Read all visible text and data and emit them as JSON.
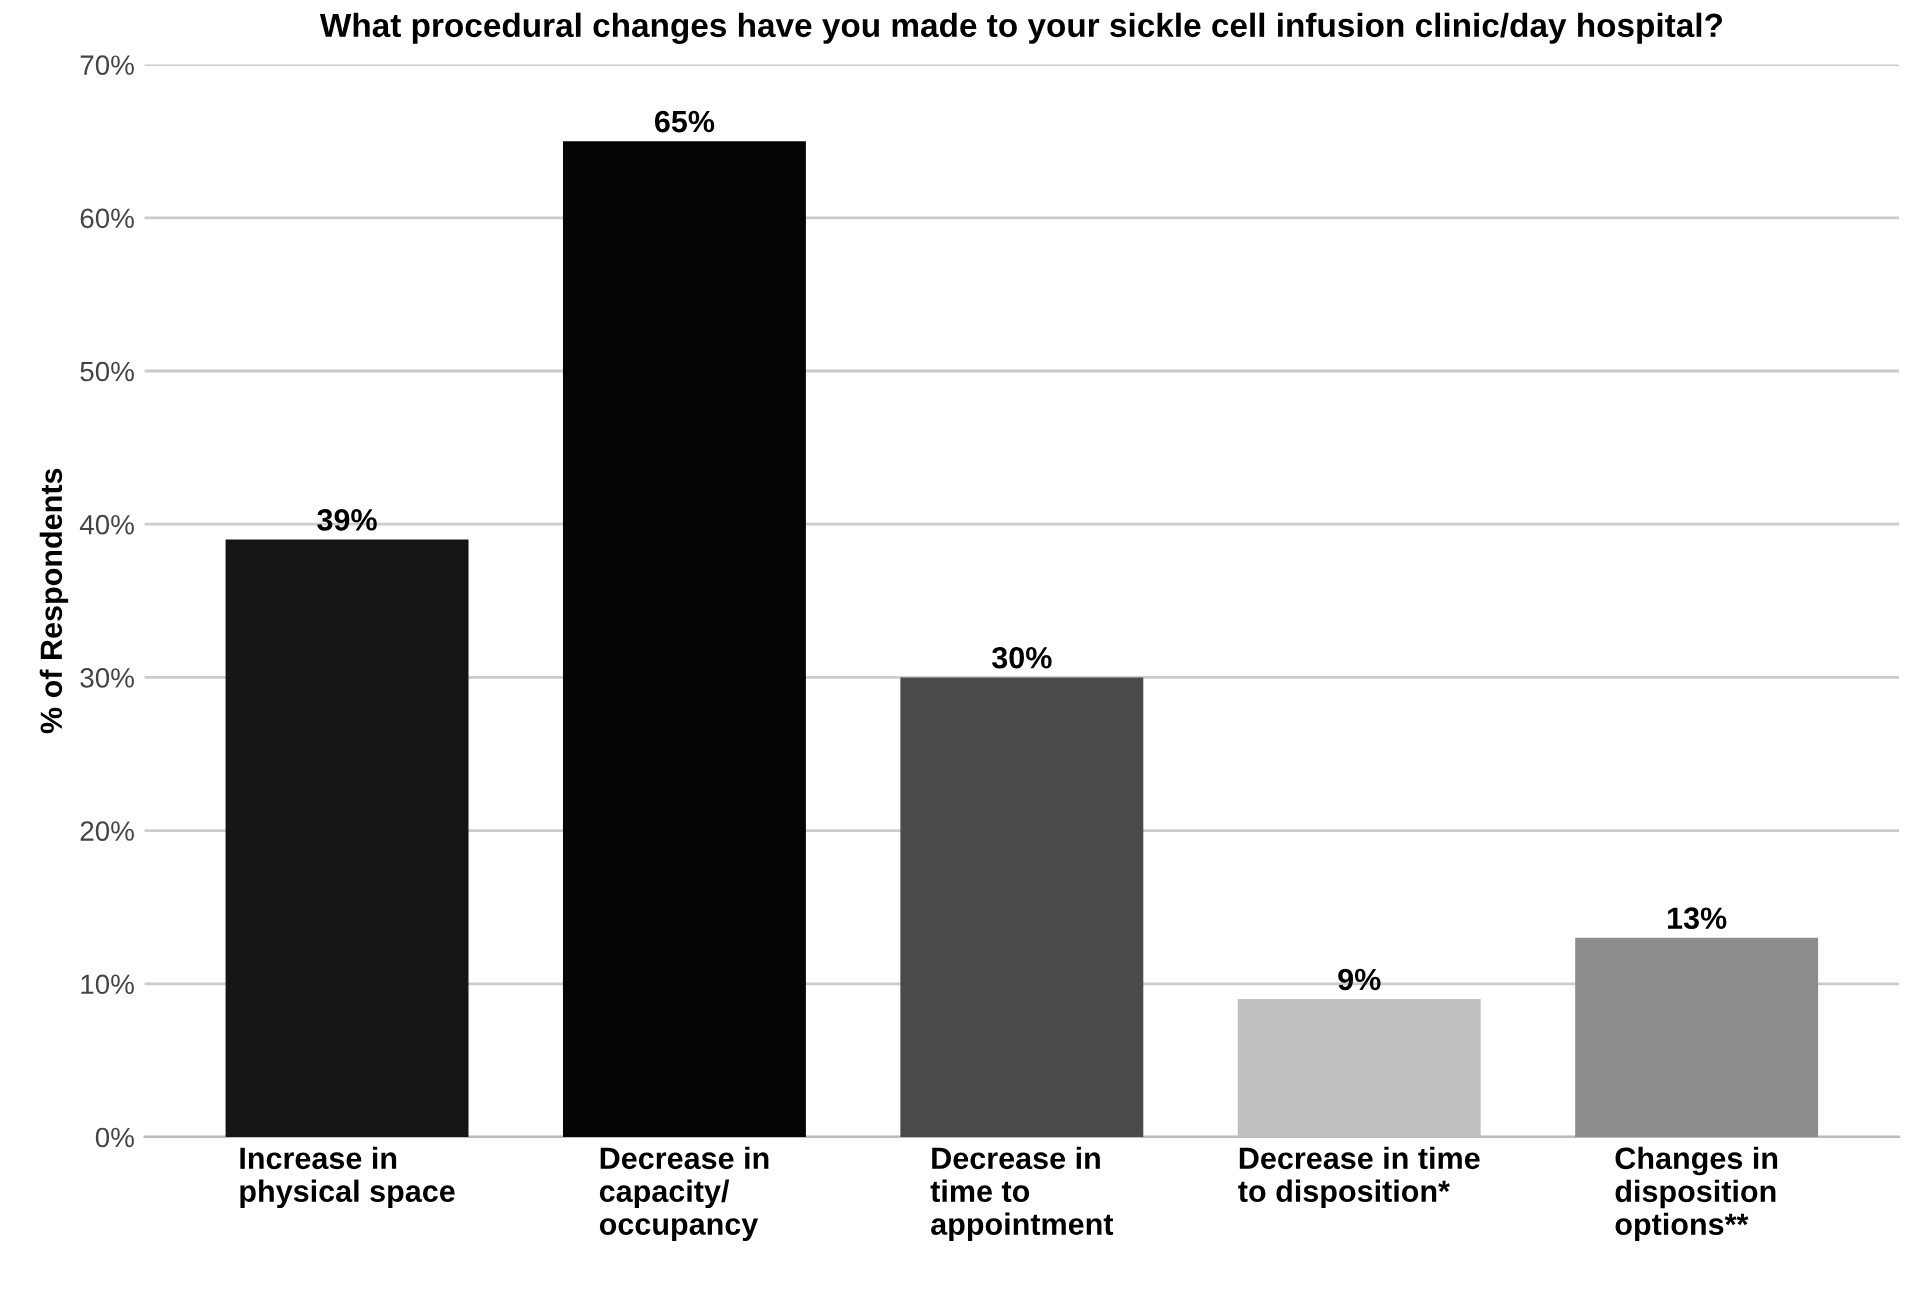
{
  "chart_data": {
    "type": "bar",
    "title": "What procedural changes have you made to your sickle cell infusion clinic/day hospital?",
    "ylabel": "% of Respondents",
    "categories": [
      "Increase in\nphysical space",
      "Decrease in\ncapacity/\noccupancy",
      "Decrease in\ntime to\nappointment",
      "Decrease in time\nto disposition*",
      "Changes in\ndisposition\noptions**"
    ],
    "values": [
      39,
      65,
      30,
      9,
      13
    ],
    "colors": [
      "#151515",
      "#050505",
      "#4a4a4a",
      "#c0c0c0",
      "#8c8c8c"
    ],
    "value_labels": [
      "39%",
      "65%",
      "30%",
      "9%",
      "13%"
    ],
    "ylim": [
      0,
      70
    ],
    "yticks": [
      {
        "value": 0,
        "label": "0%"
      },
      {
        "value": 10,
        "label": "10%"
      },
      {
        "value": 20,
        "label": "20%"
      },
      {
        "value": 30,
        "label": "30%"
      },
      {
        "value": 40,
        "label": "40%"
      },
      {
        "value": 50,
        "label": "50%"
      },
      {
        "value": 60,
        "label": "60%"
      },
      {
        "value": 70,
        "label": "70%"
      }
    ],
    "grid": "y"
  }
}
